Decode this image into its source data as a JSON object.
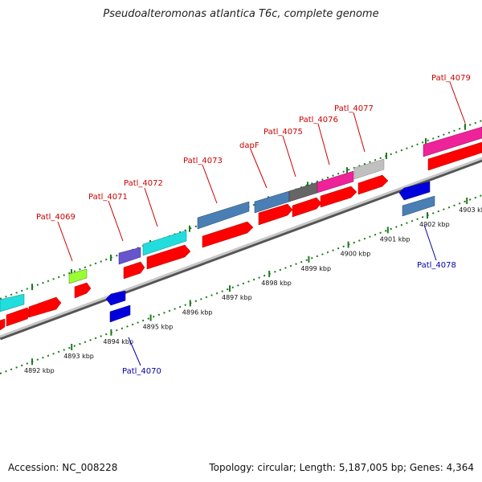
{
  "title": "Pseudoalteromonas atlantica T6c, complete genome",
  "footer": {
    "accession": "Accession: NC_008228",
    "stats": "Topology: circular; Length: 5,187,005 bp; Genes: 4,364"
  },
  "colors": {
    "backbone": "#8c8c8c",
    "scale_dots": "#1e7a1e",
    "forward_label": "#cc0000",
    "reverse_label": "#0000aa",
    "tick_text": "#111111"
  },
  "scale": {
    "unit": "kbp",
    "ticks": [
      {
        "label": "4892 kbp",
        "value": 4892
      },
      {
        "label": "4893 kbp",
        "value": 4893
      },
      {
        "label": "4894 kbp",
        "value": 4894
      },
      {
        "label": "4895 kbp",
        "value": 4895
      },
      {
        "label": "4896 kbp",
        "value": 4896
      },
      {
        "label": "4897 kbp",
        "value": 4897
      },
      {
        "label": "4898 kbp",
        "value": 4898
      },
      {
        "label": "4899 kbp",
        "value": 4899
      },
      {
        "label": "4900 kbp",
        "value": 4900
      },
      {
        "label": "4901 kbp",
        "value": 4901
      },
      {
        "label": "4902 kbp",
        "value": 4902
      },
      {
        "label": "4903 kbp",
        "value": 4903
      }
    ]
  },
  "labels": {
    "forward": [
      "Patl_4069",
      "Patl_4071",
      "Patl_4072",
      "Patl_4073",
      "dapF",
      "Patl_4075",
      "Patl_4076",
      "Patl_4077",
      "Patl_4079"
    ],
    "reverse": [
      "Patl_4070",
      "Patl_4078"
    ]
  },
  "features": [
    {
      "name": "Patl_4069",
      "strand": "+",
      "color": "#99ff33"
    },
    {
      "name": "Patl_4070",
      "strand": "-",
      "color": "#0000dd"
    },
    {
      "name": "Patl_4071",
      "strand": "+",
      "color": "#6655cc"
    },
    {
      "name": "Patl_4072",
      "strand": "+",
      "color": "#22dddd"
    },
    {
      "name": "Patl_4073",
      "strand": "+",
      "color": "#4a7fb5"
    },
    {
      "name": "dapF",
      "strand": "+",
      "color": "#4a7fb5"
    },
    {
      "name": "Patl_4075",
      "strand": "+",
      "color": "#666666"
    },
    {
      "name": "Patl_4076",
      "strand": "+",
      "color": "#ee2299"
    },
    {
      "name": "Patl_4077",
      "strand": "+",
      "color": "#c0c0c0"
    },
    {
      "name": "Patl_4078",
      "strand": "-",
      "color": "#0000dd"
    },
    {
      "name": "Patl_4079",
      "strand": "+",
      "color": "#ee2299"
    }
  ]
}
